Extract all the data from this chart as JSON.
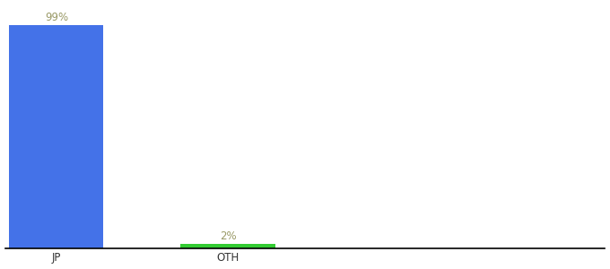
{
  "categories": [
    "JP",
    "OTH"
  ],
  "values": [
    99,
    2
  ],
  "bar_colors": [
    "#4472e8",
    "#33cc33"
  ],
  "bar_labels": [
    "99%",
    "2%"
  ],
  "label_color": "#999966",
  "ylim": [
    0,
    108
  ],
  "background_color": "#ffffff",
  "label_fontsize": 8.5,
  "tick_fontsize": 8.5,
  "bar_width": 0.55,
  "figsize": [
    6.8,
    3.0
  ],
  "dpi": 100,
  "xlim": [
    -0.3,
    3.2
  ]
}
